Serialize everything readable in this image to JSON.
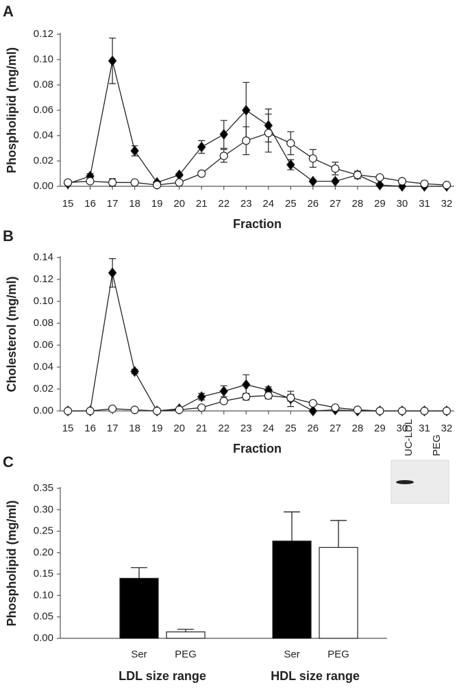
{
  "chart_data": [
    {
      "type": "line",
      "panel": "A",
      "x_label": "Fraction",
      "y_label": "Phospholipid (mg/ml)",
      "x": [
        15,
        16,
        17,
        18,
        19,
        20,
        21,
        22,
        23,
        24,
        25,
        26,
        27,
        28,
        29,
        30,
        31,
        32
      ],
      "xlim": [
        14.66,
        32.34
      ],
      "xticks": [
        15,
        16,
        17,
        18,
        19,
        20,
        21,
        22,
        23,
        24,
        25,
        26,
        27,
        28,
        29,
        30,
        31,
        32
      ],
      "ylim": [
        0,
        0.12
      ],
      "yticks": [
        {
          "value": 0,
          "label": "0.00"
        },
        {
          "value": 0.02,
          "label": "0.02"
        },
        {
          "value": 0.04,
          "label": "0.04"
        },
        {
          "value": 0.06,
          "label": "0.06"
        },
        {
          "value": 0.08,
          "label": "0.08"
        },
        {
          "value": 0.1,
          "label": "0.10"
        },
        {
          "value": 0.12,
          "label": "0.12"
        }
      ],
      "grid": false,
      "series": [
        {
          "marker": "diamond",
          "color": "#000000",
          "values": [
            0.002,
            0.008,
            0.099,
            0.028,
            0.003,
            0.009,
            0.031,
            0.041,
            0.06,
            0.048,
            0.017,
            0.004,
            0.004,
            0.009,
            0.001,
            0.0,
            0.0,
            0.0
          ],
          "errors": [
            0.001,
            0.002,
            0.018,
            0.004,
            0.001,
            0.001,
            0.005,
            0.011,
            0.022,
            0.013,
            0.004,
            0.001,
            0.001,
            0.002,
            0.001,
            0.0,
            0.0,
            0.0
          ]
        },
        {
          "marker": "circle",
          "color": "#ffffff",
          "values": [
            0.003,
            0.004,
            0.003,
            0.003,
            0.001,
            0.003,
            0.01,
            0.024,
            0.036,
            0.042,
            0.034,
            0.022,
            0.014,
            0.009,
            0.007,
            0.004,
            0.002,
            0.001
          ],
          "errors": [
            0.001,
            0.001,
            0.003,
            0.001,
            0.001,
            0.001,
            0.002,
            0.005,
            0.011,
            0.015,
            0.009,
            0.007,
            0.005,
            0.003,
            0.001,
            0.001,
            0.001,
            0.001
          ]
        }
      ]
    },
    {
      "type": "line",
      "panel": "B",
      "x_label": "Fraction",
      "y_label": "Cholesterol (mg/ml)",
      "x": [
        15,
        16,
        17,
        18,
        19,
        20,
        21,
        22,
        23,
        24,
        25,
        26,
        27,
        28,
        29,
        30,
        31,
        32
      ],
      "xlim": [
        14.66,
        32.34
      ],
      "xticks": [
        15,
        16,
        17,
        18,
        19,
        20,
        21,
        22,
        23,
        24,
        25,
        26,
        27,
        28,
        29,
        30,
        31,
        32
      ],
      "ylim": [
        0,
        0.14
      ],
      "yticks": [
        {
          "value": 0,
          "label": "0.00"
        },
        {
          "value": 0.02,
          "label": "0.02"
        },
        {
          "value": 0.04,
          "label": "0.04"
        },
        {
          "value": 0.06,
          "label": "0.06"
        },
        {
          "value": 0.08,
          "label": "0.08"
        },
        {
          "value": 0.1,
          "label": "0.10"
        },
        {
          "value": 0.12,
          "label": "0.12"
        },
        {
          "value": 0.14,
          "label": "0.14"
        }
      ],
      "grid": false,
      "series": [
        {
          "marker": "diamond",
          "color": "#000000",
          "values": [
            0,
            0,
            0.126,
            0.036,
            0,
            0.002,
            0.013,
            0.018,
            0.024,
            0.019,
            0.011,
            0,
            0.001,
            0,
            0,
            0,
            0,
            0
          ],
          "errors": [
            0,
            0,
            0.013,
            0.002,
            0,
            0.001,
            0.003,
            0.005,
            0.009,
            0.003,
            0.007,
            0,
            0.001,
            0,
            0,
            0,
            0,
            0
          ]
        },
        {
          "marker": "circle",
          "color": "#ffffff",
          "values": [
            0,
            0,
            0.002,
            0.001,
            0,
            0.001,
            0.003,
            0.009,
            0.013,
            0.014,
            0.012,
            0.007,
            0.003,
            0.001,
            0,
            0,
            0,
            0
          ],
          "errors": [
            0,
            0,
            0.001,
            0,
            0,
            0,
            0.001,
            0.002,
            0.003,
            0.003,
            0.003,
            0.002,
            0.001,
            0.001,
            0,
            0,
            0,
            0
          ]
        }
      ]
    },
    {
      "type": "bar",
      "panel": "C",
      "y_label": "Phospholipid (mg/ml)",
      "categories": [
        "LDL size range",
        "HDL size range"
      ],
      "ylim": [
        0,
        0.35
      ],
      "yticks": [
        {
          "value": 0,
          "label": "0.00"
        },
        {
          "value": 0.05,
          "label": "0.05"
        },
        {
          "value": 0.1,
          "label": "0.10"
        },
        {
          "value": 0.15,
          "label": "0.15"
        },
        {
          "value": 0.2,
          "label": "0.20"
        },
        {
          "value": 0.25,
          "label": "0.25"
        },
        {
          "value": 0.3,
          "label": "0.30"
        },
        {
          "value": 0.35,
          "label": "0.35"
        }
      ],
      "grid": false,
      "series": [
        {
          "name": "Ser",
          "color": "#000000",
          "values": [
            0.14,
            0.227
          ],
          "errors": [
            0.025,
            0.068
          ]
        },
        {
          "name": "PEG",
          "color": "#ffffff",
          "values": [
            0.015,
            0.212
          ],
          "errors": [
            0.006,
            0.063
          ]
        }
      ],
      "inset": {
        "labels": [
          "UC-LDL",
          "PEG"
        ]
      }
    }
  ]
}
